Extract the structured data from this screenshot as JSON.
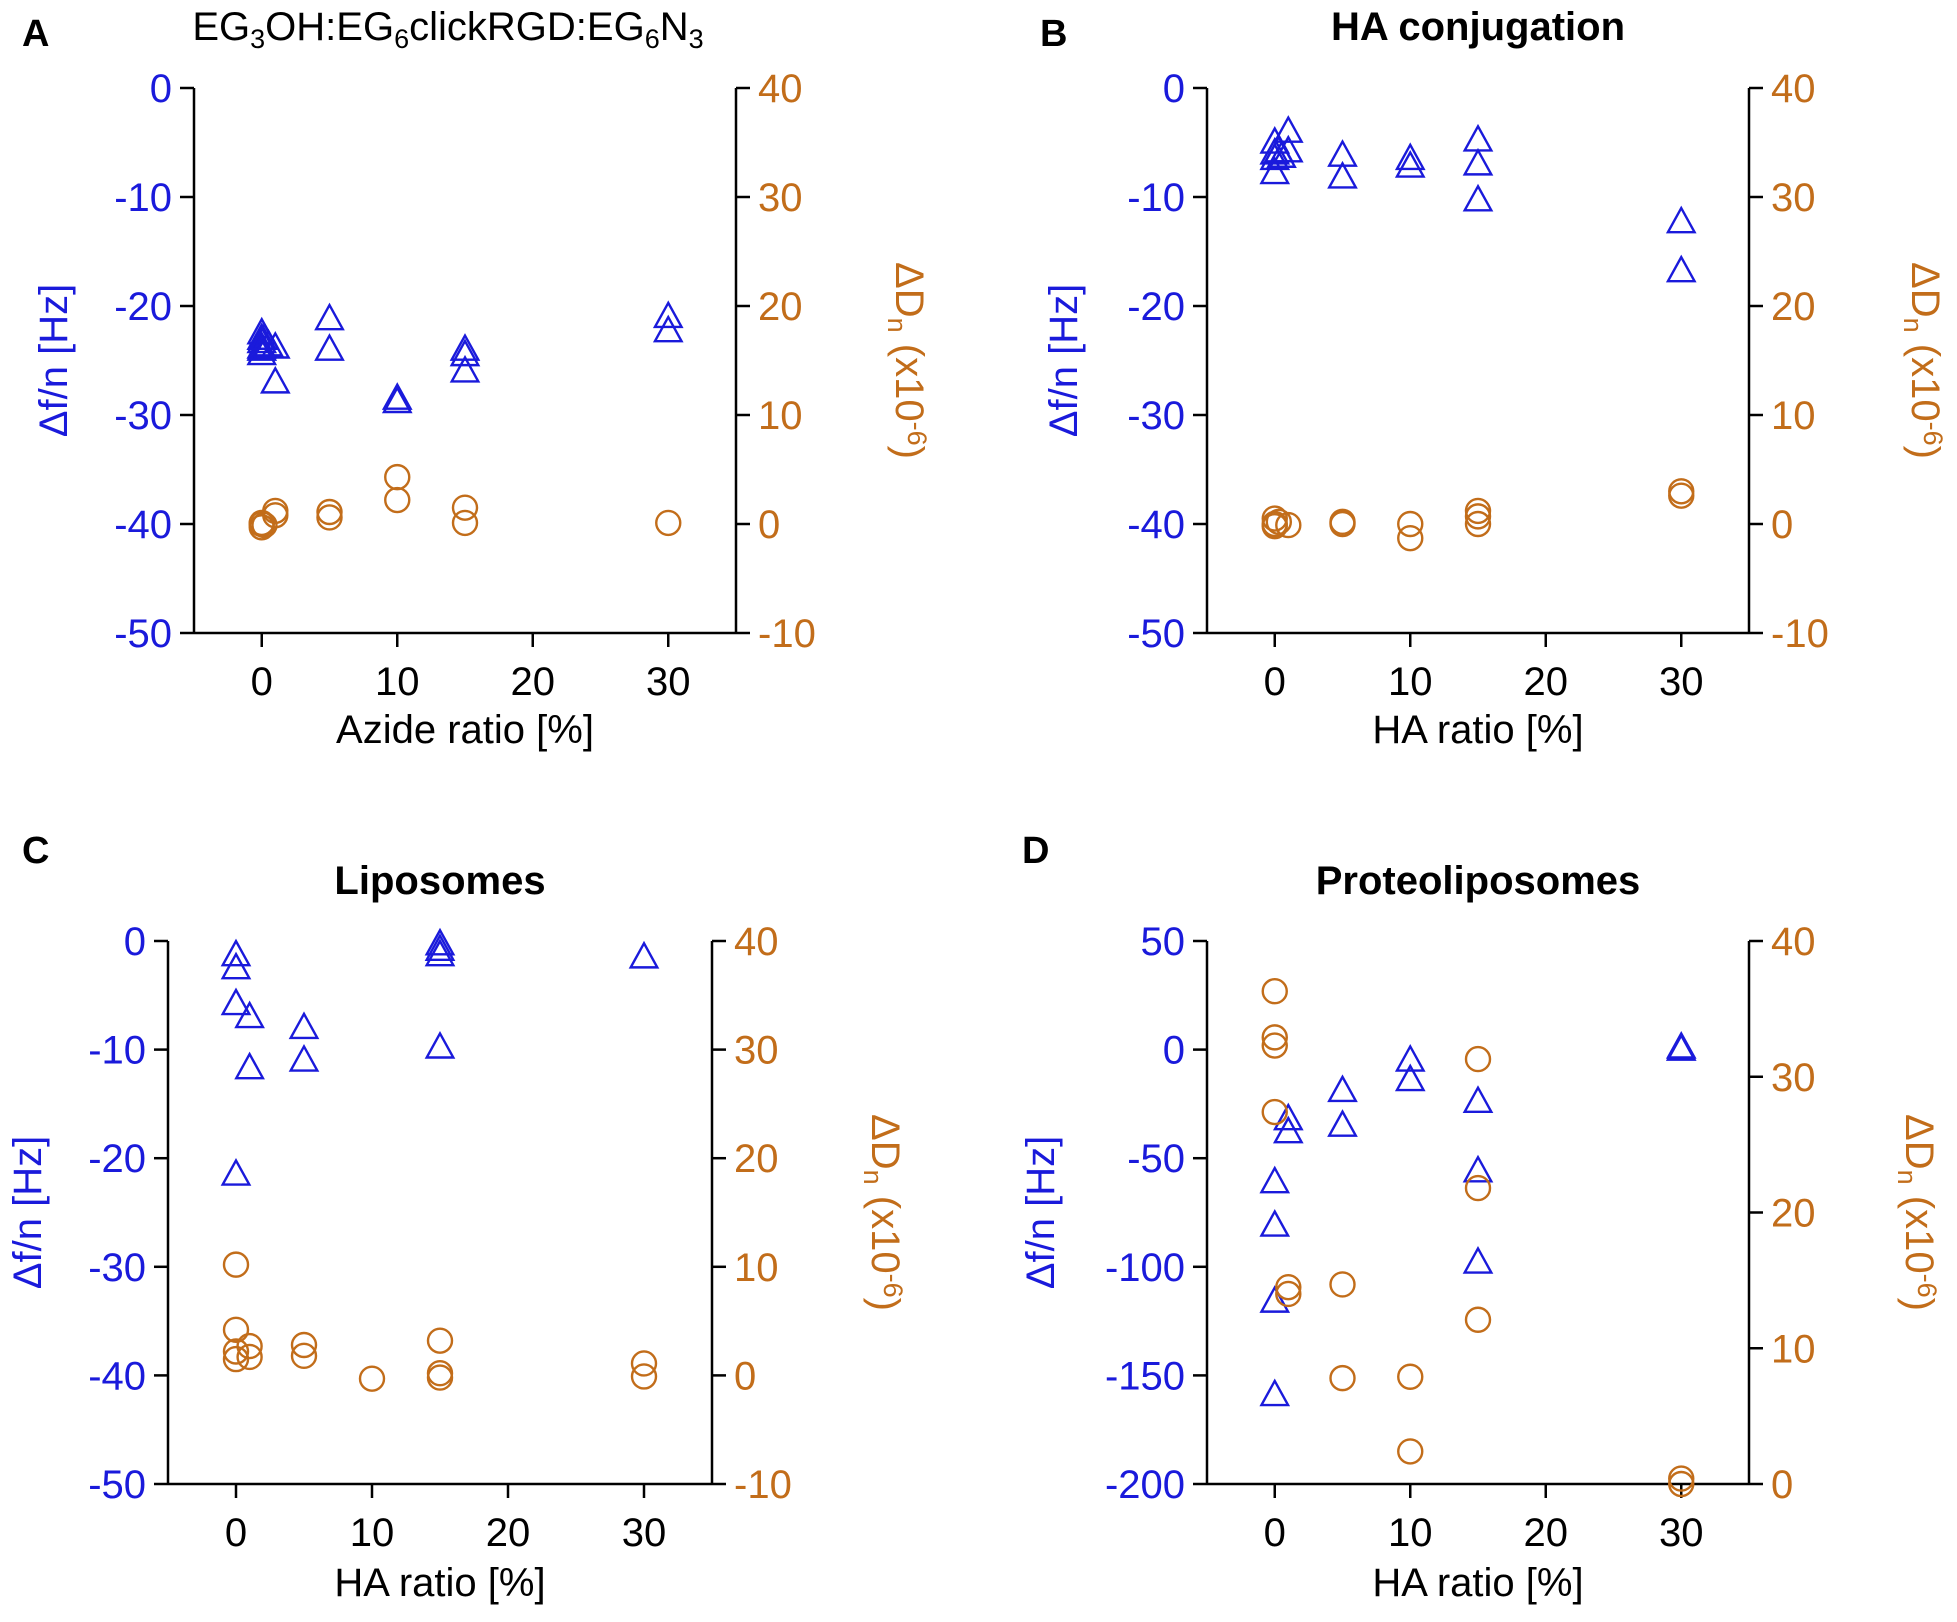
{
  "figure": {
    "left_axis_color": "#1a1adb",
    "right_axis_color": "#c26d1a"
  },
  "chart_data": [
    {
      "panel_letter": "A",
      "title_parts": [
        "EG",
        "3",
        "OH:EG",
        "6",
        "clickRGD:EG",
        "6",
        "N",
        "3"
      ],
      "title_bold": false,
      "type": "scatter",
      "xlabel": "Azide ratio [%]",
      "ylabel_left": "Δf/n [Hz]",
      "ylabel_right_parts": [
        "ΔD",
        "n",
        " (x10",
        "-6",
        ")"
      ],
      "xlim": [
        -5,
        35
      ],
      "xticks": [
        0,
        10,
        20,
        30
      ],
      "ylim_left": [
        -50,
        0
      ],
      "yticks_left": [
        -50,
        -40,
        -30,
        -20,
        -10,
        0
      ],
      "ylim_right": [
        -10,
        40
      ],
      "yticks_right": [
        -10,
        0,
        10,
        20,
        30,
        40
      ],
      "series": [
        {
          "name": "Δf/n",
          "axis": "left",
          "marker": "triangle",
          "x": [
            0,
            0,
            0,
            0,
            0,
            0,
            0.2,
            0.5,
            1,
            1,
            5,
            5,
            10,
            10,
            15,
            15,
            15,
            30,
            30
          ],
          "y": [
            -22.5,
            -23,
            -23.3,
            -23.8,
            -24,
            -24.4,
            -23,
            -23.6,
            -23.8,
            -27,
            -21.2,
            -24,
            -28.5,
            -28.8,
            -24,
            -24.5,
            -26,
            -21,
            -22.3
          ]
        },
        {
          "name": "ΔD",
          "axis": "right",
          "marker": "circle",
          "x": [
            0,
            0,
            0,
            0.2,
            1,
            1,
            5,
            5,
            10,
            10,
            15,
            15,
            30
          ],
          "y": [
            0,
            -0.3,
            0.1,
            -0.1,
            0.8,
            1.2,
            0.6,
            1.1,
            2.2,
            4.3,
            1.5,
            0.1,
            0.1
          ]
        }
      ]
    },
    {
      "panel_letter": "B",
      "title_parts": [
        "HA conjugation"
      ],
      "title_bold": true,
      "type": "scatter",
      "xlabel": "HA ratio [%]",
      "ylabel_left": "Δf/n [Hz]",
      "ylabel_right_parts": [
        "ΔD",
        "n",
        " (x10",
        "-6",
        ")"
      ],
      "xlim": [
        -5,
        35
      ],
      "xticks": [
        0,
        10,
        20,
        30
      ],
      "ylim_left": [
        -50,
        0
      ],
      "yticks_left": [
        -50,
        -40,
        -30,
        -20,
        -10,
        0
      ],
      "ylim_right": [
        -10,
        40
      ],
      "yticks_right": [
        -10,
        0,
        10,
        20,
        30,
        40
      ],
      "series": [
        {
          "name": "Δf/n",
          "axis": "left",
          "marker": "triangle",
          "x": [
            0,
            0,
            0,
            0,
            0.3,
            0.5,
            1,
            1,
            5,
            5,
            10,
            10,
            15,
            15,
            15,
            30,
            30
          ],
          "y": [
            -5,
            -6,
            -6.5,
            -7.8,
            -5.8,
            -6.3,
            -4,
            -5.8,
            -6.2,
            -8.2,
            -6.5,
            -7.2,
            -4.8,
            -7,
            -10.3,
            -12.3,
            -16.8
          ]
        },
        {
          "name": "ΔD",
          "axis": "right",
          "marker": "circle",
          "x": [
            0,
            0,
            0,
            0.3,
            1,
            5,
            5,
            10,
            10,
            15,
            15,
            15,
            30,
            30
          ],
          "y": [
            0.5,
            0,
            -0.2,
            0.2,
            -0.1,
            0.2,
            0,
            0,
            -1.3,
            1.2,
            0.7,
            0,
            2.6,
            3.0
          ]
        }
      ]
    },
    {
      "panel_letter": "C",
      "title_parts": [
        "Liposomes"
      ],
      "title_bold": true,
      "type": "scatter",
      "xlabel": "HA ratio [%]",
      "ylabel_left": "Δf/n [Hz]",
      "ylabel_right_parts": [
        "ΔD",
        "n",
        " (x10",
        "-6",
        ")"
      ],
      "xlim": [
        -5,
        35
      ],
      "xticks": [
        0,
        10,
        20,
        30
      ],
      "ylim_left": [
        -50,
        0
      ],
      "yticks_left": [
        -50,
        -40,
        -30,
        -20,
        -10,
        0
      ],
      "ylim_right": [
        -10,
        40
      ],
      "yticks_right": [
        -10,
        0,
        10,
        20,
        30,
        40
      ],
      "series": [
        {
          "name": "Δf/n",
          "axis": "left",
          "marker": "triangle",
          "x": [
            0,
            0,
            0,
            0,
            1,
            1,
            5,
            5,
            15,
            15,
            15,
            15,
            30
          ],
          "y": [
            -1.3,
            -2.5,
            -5.8,
            -21.5,
            -7,
            -11.7,
            -8,
            -11,
            -0.3,
            -0.8,
            -1.3,
            -9.8,
            -1.5
          ]
        },
        {
          "name": "ΔD",
          "axis": "right",
          "marker": "circle",
          "x": [
            0,
            0,
            0,
            0,
            1,
            1,
            5,
            5,
            10,
            15,
            15,
            15,
            30,
            30
          ],
          "y": [
            10.2,
            4.2,
            2.2,
            1.5,
            2.7,
            1.7,
            2.8,
            1.8,
            -0.3,
            3.2,
            0.2,
            -0.2,
            1.1,
            -0.1
          ]
        }
      ]
    },
    {
      "panel_letter": "D",
      "title_parts": [
        "Proteoliposomes"
      ],
      "title_bold": true,
      "type": "scatter",
      "xlabel": "HA ratio [%]",
      "ylabel_left": "Δf/n [Hz]",
      "ylabel_right_parts": [
        "ΔD",
        "n",
        " (x10",
        "-6",
        ")"
      ],
      "xlim": [
        -5,
        35
      ],
      "xticks": [
        0,
        10,
        20,
        30
      ],
      "ylim_left": [
        -200,
        50
      ],
      "yticks_left": [
        -200,
        -150,
        -100,
        -50,
        0,
        50
      ],
      "ylim_right": [
        0,
        40
      ],
      "yticks_right": [
        0,
        10,
        20,
        30,
        40
      ],
      "series": [
        {
          "name": "Δf/n",
          "axis": "left",
          "marker": "triangle",
          "x": [
            0,
            0,
            0,
            0,
            1,
            1,
            5,
            5,
            10,
            10,
            15,
            15,
            15,
            30,
            30
          ],
          "y": [
            -61,
            -81,
            -116,
            -159,
            -32,
            -38,
            -19,
            -35,
            -5,
            -14,
            -24,
            -56,
            -98,
            0,
            1
          ]
        },
        {
          "name": "ΔD",
          "axis": "right",
          "marker": "circle",
          "x": [
            0,
            0,
            0,
            0,
            1,
            1,
            5,
            5,
            10,
            10,
            15,
            15,
            15,
            30,
            30
          ],
          "y": [
            36.3,
            32.9,
            32.3,
            27.4,
            14.5,
            14,
            14.7,
            7.8,
            7.9,
            2.4,
            31.3,
            21.8,
            12.1,
            0.4,
            0
          ]
        }
      ]
    }
  ]
}
